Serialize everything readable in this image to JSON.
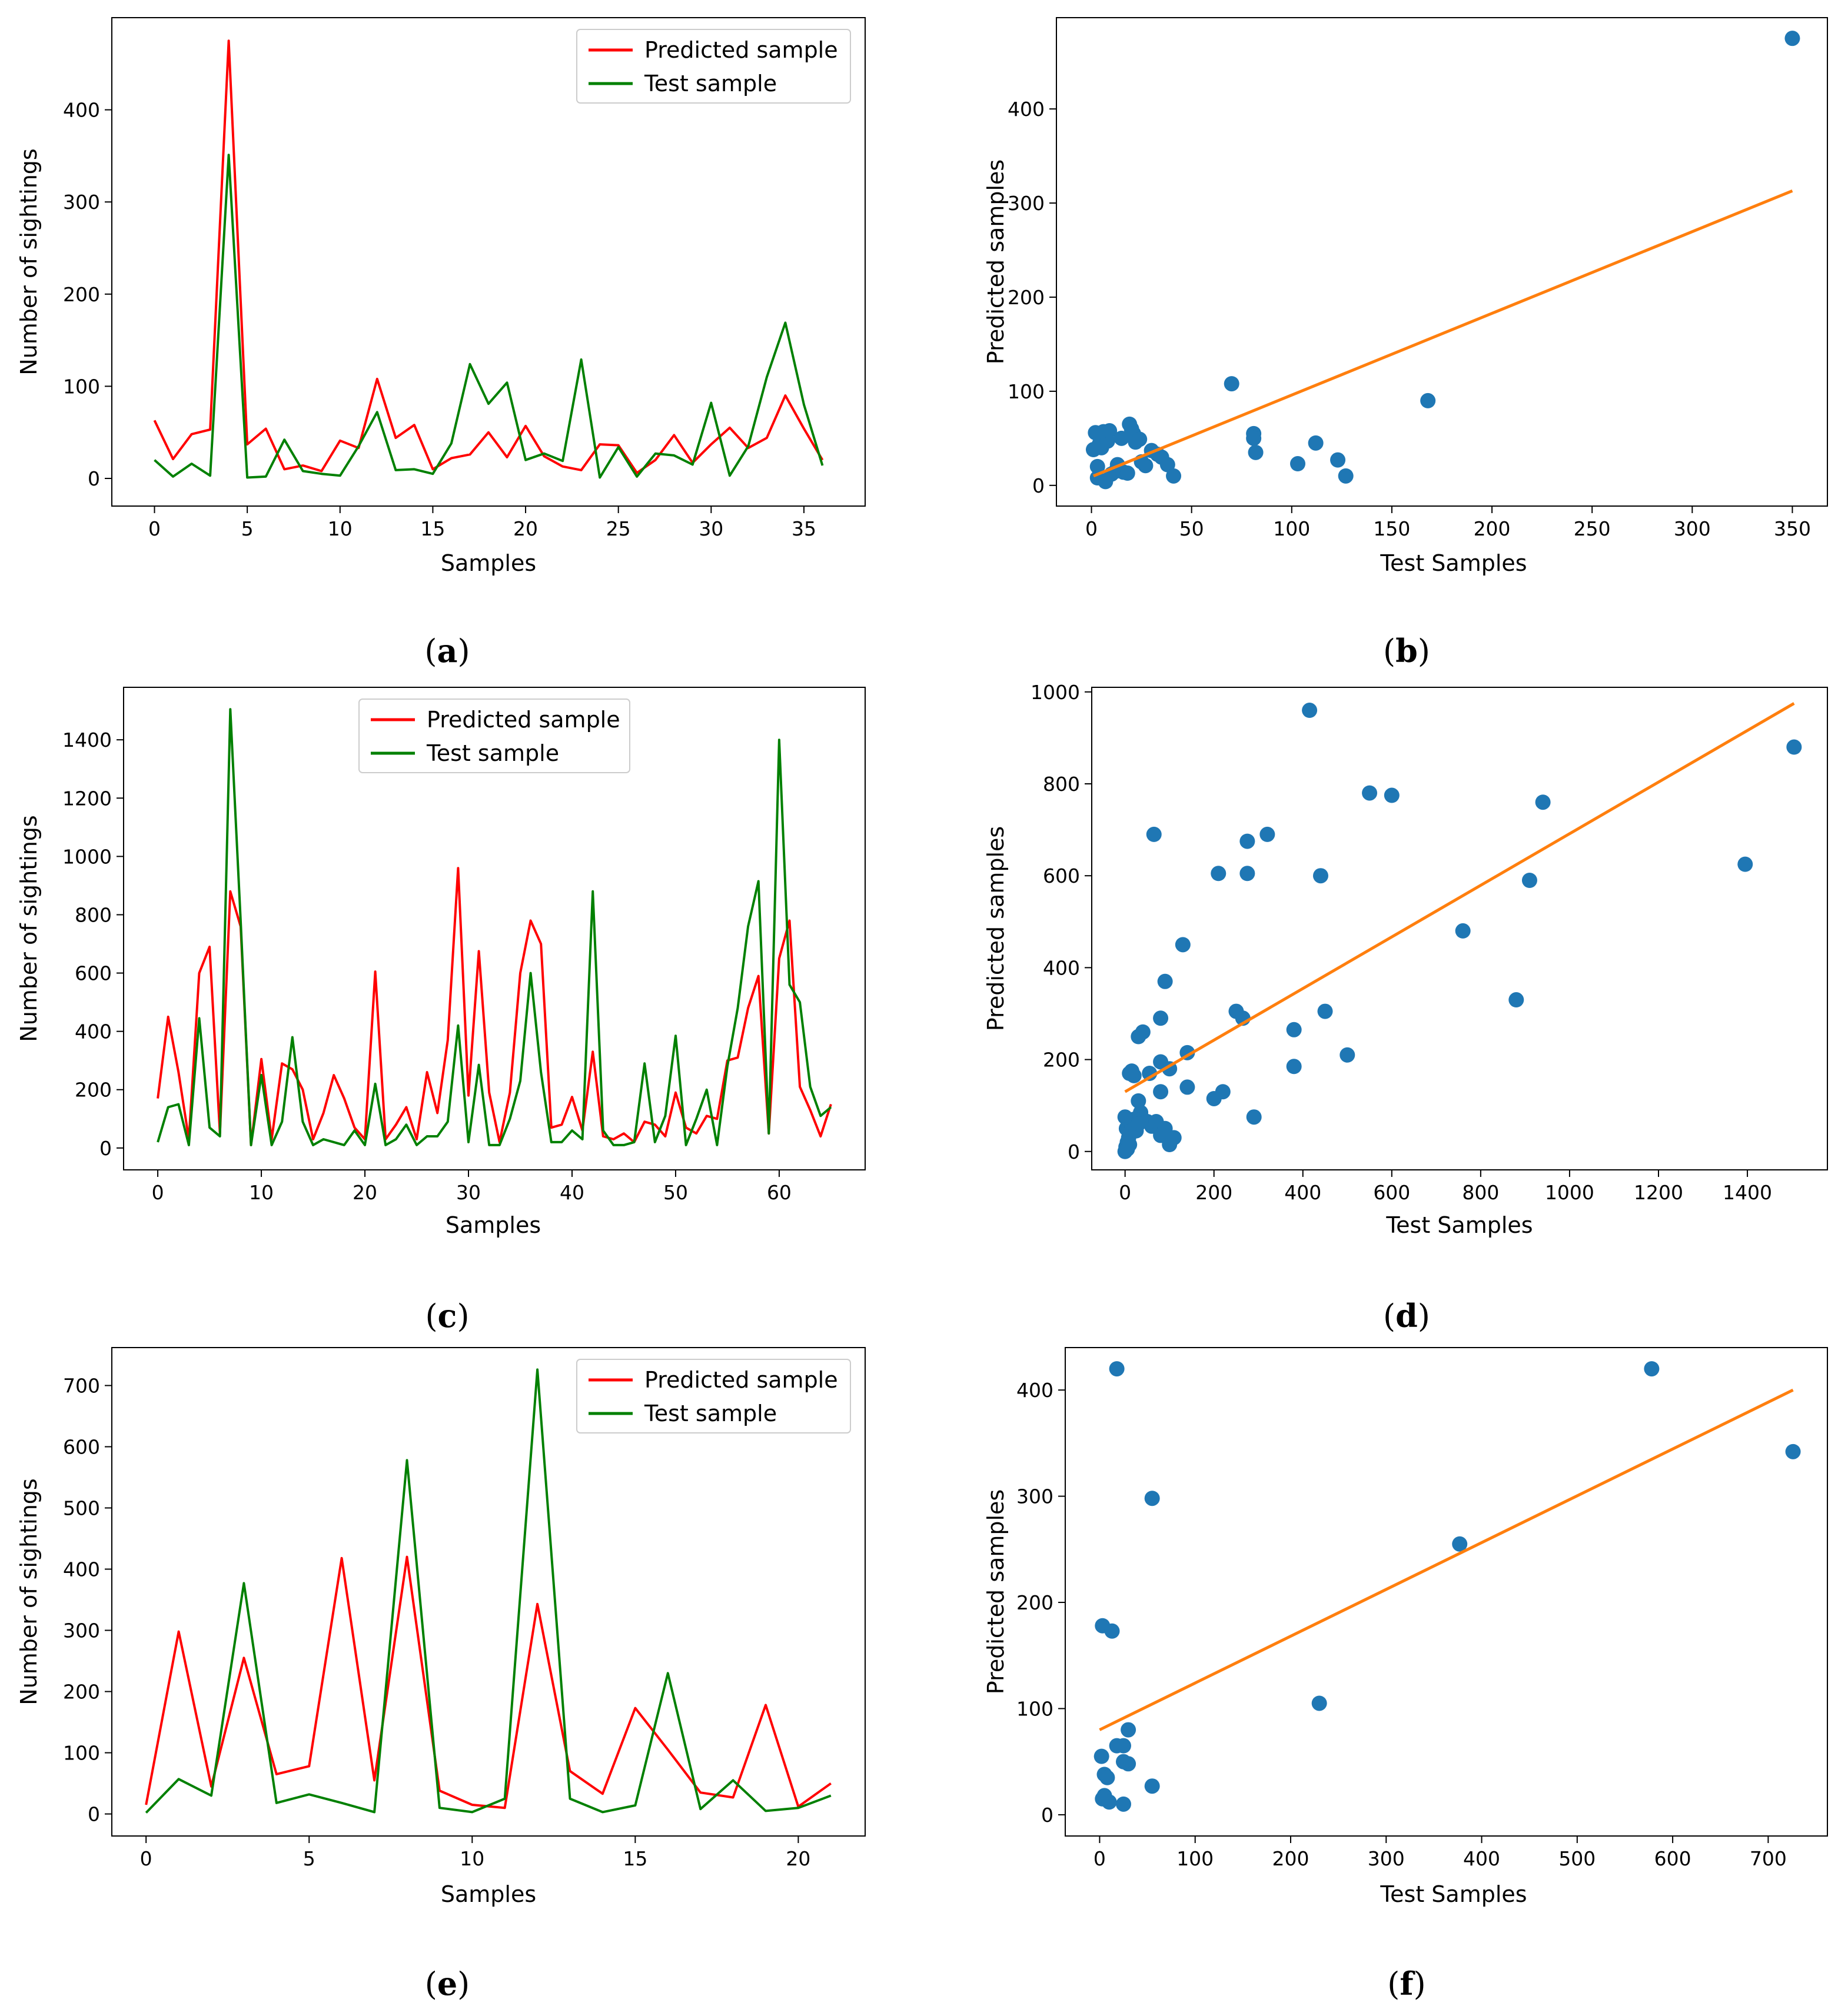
{
  "colors": {
    "predicted": "#ff0000",
    "test": "#008000",
    "scatter": "#1f77b4",
    "fit": "#ff7f0e",
    "axis": "#000000"
  },
  "chart_data": [
    {
      "id": "a",
      "caption": "a",
      "type": "line",
      "xlabel": "Samples",
      "ylabel": "Number of sightings",
      "xlim": [
        -2.3,
        38.3
      ],
      "ylim": [
        -30,
        500
      ],
      "xticks": [
        0,
        5,
        10,
        15,
        20,
        25,
        30,
        35
      ],
      "yticks": [
        0,
        100,
        200,
        300,
        400
      ],
      "legend": {
        "position": "top-right"
      },
      "x": [
        0,
        1,
        2,
        3,
        4,
        5,
        6,
        7,
        8,
        9,
        10,
        11,
        12,
        13,
        14,
        15,
        16,
        17,
        18,
        19,
        20,
        21,
        22,
        23,
        24,
        25,
        26,
        27,
        28,
        29,
        30,
        31,
        32,
        33,
        34,
        35,
        36
      ],
      "series": [
        {
          "name": "Predicted sample",
          "color": "#ff0000",
          "values": [
            63,
            21,
            48,
            53,
            475,
            37,
            54,
            10,
            14,
            8,
            41,
            33,
            108,
            44,
            58,
            10,
            22,
            26,
            50,
            23,
            57,
            24,
            13,
            9,
            37,
            36,
            6,
            20,
            47,
            17,
            37,
            55,
            33,
            44,
            90,
            54,
            20
          ]
        },
        {
          "name": "Test sample",
          "color": "#008000",
          "values": [
            20,
            2,
            16,
            3,
            351,
            1,
            2,
            42,
            8,
            5,
            3,
            35,
            72,
            9,
            10,
            5,
            38,
            124,
            81,
            104,
            20,
            27,
            19,
            129,
            1,
            34,
            2,
            27,
            25,
            15,
            82,
            3,
            35,
            110,
            169,
            80,
            14
          ]
        }
      ]
    },
    {
      "id": "b",
      "caption": "b",
      "type": "scatter",
      "xlabel": "Test Samples",
      "ylabel": "Predicted samples",
      "xlim": [
        -17.5,
        367.5
      ],
      "ylim": [
        -22,
        497
      ],
      "xticks": [
        0,
        50,
        100,
        150,
        200,
        250,
        300,
        350
      ],
      "yticks": [
        0,
        100,
        200,
        300,
        400
      ],
      "points": [
        [
          350,
          475
        ],
        [
          70,
          108
        ],
        [
          168,
          90
        ],
        [
          81,
          55
        ],
        [
          81,
          50
        ],
        [
          82,
          35
        ],
        [
          112,
          45
        ],
        [
          103,
          23
        ],
        [
          123,
          27
        ],
        [
          127,
          10
        ],
        [
          1,
          38
        ],
        [
          2,
          56
        ],
        [
          3,
          20
        ],
        [
          3,
          8
        ],
        [
          4,
          44
        ],
        [
          5,
          40
        ],
        [
          6,
          57
        ],
        [
          7,
          4
        ],
        [
          8,
          47
        ],
        [
          9,
          58
        ],
        [
          10,
          12
        ],
        [
          12,
          15
        ],
        [
          13,
          22
        ],
        [
          15,
          50
        ],
        [
          16,
          14
        ],
        [
          18,
          13
        ],
        [
          19,
          65
        ],
        [
          20,
          60
        ],
        [
          21,
          55
        ],
        [
          22,
          46
        ],
        [
          24,
          49
        ],
        [
          25,
          25
        ],
        [
          27,
          21
        ],
        [
          30,
          37
        ],
        [
          33,
          33
        ],
        [
          35,
          30
        ],
        [
          38,
          22
        ],
        [
          41,
          10
        ]
      ],
      "fit_line": {
        "x": [
          1,
          350
        ],
        "y": [
          10,
          313
        ]
      }
    },
    {
      "id": "c",
      "caption": "c",
      "type": "line",
      "xlabel": "Samples",
      "ylabel": "Number of sightings",
      "xlim": [
        -3.3,
        68.3
      ],
      "ylim": [
        -75,
        1580
      ],
      "xticks": [
        0,
        10,
        20,
        30,
        40,
        50,
        60
      ],
      "yticks": [
        0,
        200,
        400,
        600,
        800,
        1000,
        1200,
        1400
      ],
      "legend": {
        "position": "top-center"
      },
      "x": [
        0,
        1,
        2,
        3,
        4,
        5,
        6,
        7,
        8,
        9,
        10,
        11,
        12,
        13,
        14,
        15,
        16,
        17,
        18,
        19,
        20,
        21,
        22,
        23,
        24,
        25,
        26,
        27,
        28,
        29,
        30,
        31,
        32,
        33,
        34,
        35,
        36,
        37,
        38,
        39,
        40,
        41,
        42,
        43,
        44,
        45,
        46,
        47,
        48,
        49,
        50,
        51,
        52,
        53,
        54,
        55,
        56,
        57,
        58,
        59,
        60,
        61,
        62,
        63,
        64,
        65
      ],
      "series": [
        {
          "name": "Predicted sample",
          "color": "#ff0000",
          "values": [
            170,
            450,
            260,
            30,
            600,
            690,
            50,
            880,
            760,
            10,
            305,
            30,
            290,
            270,
            200,
            30,
            120,
            250,
            170,
            70,
            30,
            605,
            30,
            80,
            140,
            30,
            260,
            120,
            370,
            960,
            180,
            675,
            190,
            20,
            190,
            600,
            780,
            700,
            70,
            80,
            175,
            60,
            330,
            40,
            30,
            50,
            20,
            90,
            80,
            40,
            190,
            70,
            50,
            110,
            100,
            300,
            310,
            480,
            590,
            50,
            650,
            780,
            210,
            130,
            40,
            150
          ]
        },
        {
          "name": "Test sample",
          "color": "#008000",
          "values": [
            20,
            140,
            150,
            10,
            445,
            70,
            40,
            1505,
            780,
            10,
            250,
            10,
            90,
            380,
            90,
            10,
            30,
            20,
            10,
            60,
            10,
            220,
            10,
            30,
            80,
            10,
            40,
            40,
            90,
            420,
            20,
            285,
            10,
            10,
            100,
            230,
            600,
            260,
            20,
            20,
            60,
            30,
            880,
            60,
            10,
            10,
            20,
            290,
            20,
            110,
            385,
            10,
            100,
            200,
            10,
            280,
            480,
            760,
            915,
            50,
            1400,
            560,
            500,
            210,
            110,
            140
          ]
        }
      ]
    },
    {
      "id": "d",
      "caption": "d",
      "type": "scatter",
      "xlabel": "Test Samples",
      "ylabel": "Predicted samples",
      "xlim": [
        -75,
        1580
      ],
      "ylim": [
        -40,
        1010
      ],
      "xticks": [
        0,
        200,
        400,
        600,
        800,
        1000,
        1200,
        1400
      ],
      "yticks": [
        0,
        200,
        400,
        600,
        800,
        1000
      ],
      "points": [
        [
          415,
          960
        ],
        [
          550,
          780
        ],
        [
          600,
          775
        ],
        [
          940,
          760
        ],
        [
          1505,
          880
        ],
        [
          1395,
          625
        ],
        [
          910,
          590
        ],
        [
          760,
          480
        ],
        [
          880,
          330
        ],
        [
          65,
          690
        ],
        [
          275,
          675
        ],
        [
          320,
          690
        ],
        [
          210,
          605
        ],
        [
          275,
          605
        ],
        [
          440,
          600
        ],
        [
          130,
          450
        ],
        [
          90,
          370
        ],
        [
          250,
          305
        ],
        [
          265,
          290
        ],
        [
          80,
          290
        ],
        [
          450,
          305
        ],
        [
          380,
          265
        ],
        [
          500,
          210
        ],
        [
          380,
          185
        ],
        [
          140,
          215
        ],
        [
          30,
          250
        ],
        [
          40,
          260
        ],
        [
          80,
          195
        ],
        [
          100,
          180
        ],
        [
          10,
          170
        ],
        [
          20,
          165
        ],
        [
          15,
          175
        ],
        [
          200,
          115
        ],
        [
          220,
          130
        ],
        [
          140,
          140
        ],
        [
          80,
          130
        ],
        [
          290,
          75
        ],
        [
          30,
          110
        ],
        [
          35,
          85
        ],
        [
          40,
          70
        ],
        [
          50,
          65
        ],
        [
          60,
          55
        ],
        [
          70,
          65
        ],
        [
          55,
          170
        ],
        [
          90,
          50
        ],
        [
          80,
          35
        ],
        [
          110,
          30
        ],
        [
          100,
          15
        ],
        [
          0,
          0
        ],
        [
          2,
          10
        ],
        [
          5,
          20
        ],
        [
          8,
          30
        ],
        [
          10,
          40
        ],
        [
          3,
          50
        ],
        [
          12,
          60
        ],
        [
          15,
          55
        ],
        [
          20,
          70
        ],
        [
          25,
          45
        ],
        [
          0,
          75
        ],
        [
          5,
          5
        ],
        [
          10,
          15
        ],
        [
          30,
          60
        ]
      ],
      "fit_line": {
        "x": [
          0,
          1505
        ],
        "y": [
          130,
          975
        ]
      }
    },
    {
      "id": "e",
      "caption": "e",
      "type": "line",
      "xlabel": "Samples",
      "ylabel": "Number of sightings",
      "xlim": [
        -1.05,
        22.05
      ],
      "ylim": [
        -36,
        762
      ],
      "xticks": [
        0,
        5,
        10,
        15,
        20
      ],
      "yticks": [
        0,
        100,
        200,
        300,
        400,
        500,
        600,
        700
      ],
      "legend": {
        "position": "top-right"
      },
      "x": [
        0,
        1,
        2,
        3,
        4,
        5,
        6,
        7,
        8,
        9,
        10,
        11,
        12,
        13,
        14,
        15,
        16,
        17,
        18,
        19,
        20,
        21
      ],
      "series": [
        {
          "name": "Predicted sample",
          "color": "#ff0000",
          "values": [
            15,
            298,
            45,
            255,
            65,
            78,
            418,
            55,
            420,
            38,
            15,
            10,
            343,
            70,
            33,
            173,
            105,
            35,
            27,
            178,
            12,
            50
          ]
        },
        {
          "name": "Test sample",
          "color": "#008000",
          "values": [
            2,
            57,
            30,
            377,
            18,
            32,
            18,
            3,
            578,
            10,
            3,
            25,
            726,
            25,
            3,
            14,
            230,
            8,
            55,
            5,
            10,
            30
          ]
        }
      ]
    },
    {
      "id": "f",
      "caption": "f",
      "type": "scatter",
      "xlabel": "Test Samples",
      "ylabel": "Predicted samples",
      "xlim": [
        -36,
        762
      ],
      "ylim": [
        -20,
        440
      ],
      "xticks": [
        0,
        100,
        200,
        300,
        400,
        500,
        600,
        700
      ],
      "yticks": [
        0,
        100,
        200,
        300,
        400
      ],
      "points": [
        [
          18,
          420
        ],
        [
          578,
          420
        ],
        [
          726,
          342
        ],
        [
          55,
          298
        ],
        [
          377,
          255
        ],
        [
          3,
          178
        ],
        [
          13,
          173
        ],
        [
          230,
          105
        ],
        [
          30,
          80
        ],
        [
          18,
          65
        ],
        [
          25,
          65
        ],
        [
          30,
          48
        ],
        [
          25,
          50
        ],
        [
          2,
          55
        ],
        [
          5,
          38
        ],
        [
          8,
          35
        ],
        [
          3,
          15
        ],
        [
          5,
          18
        ],
        [
          10,
          12
        ],
        [
          55,
          27
        ],
        [
          25,
          10
        ]
      ],
      "fit_line": {
        "x": [
          0,
          726
        ],
        "y": [
          80,
          400
        ]
      }
    }
  ]
}
